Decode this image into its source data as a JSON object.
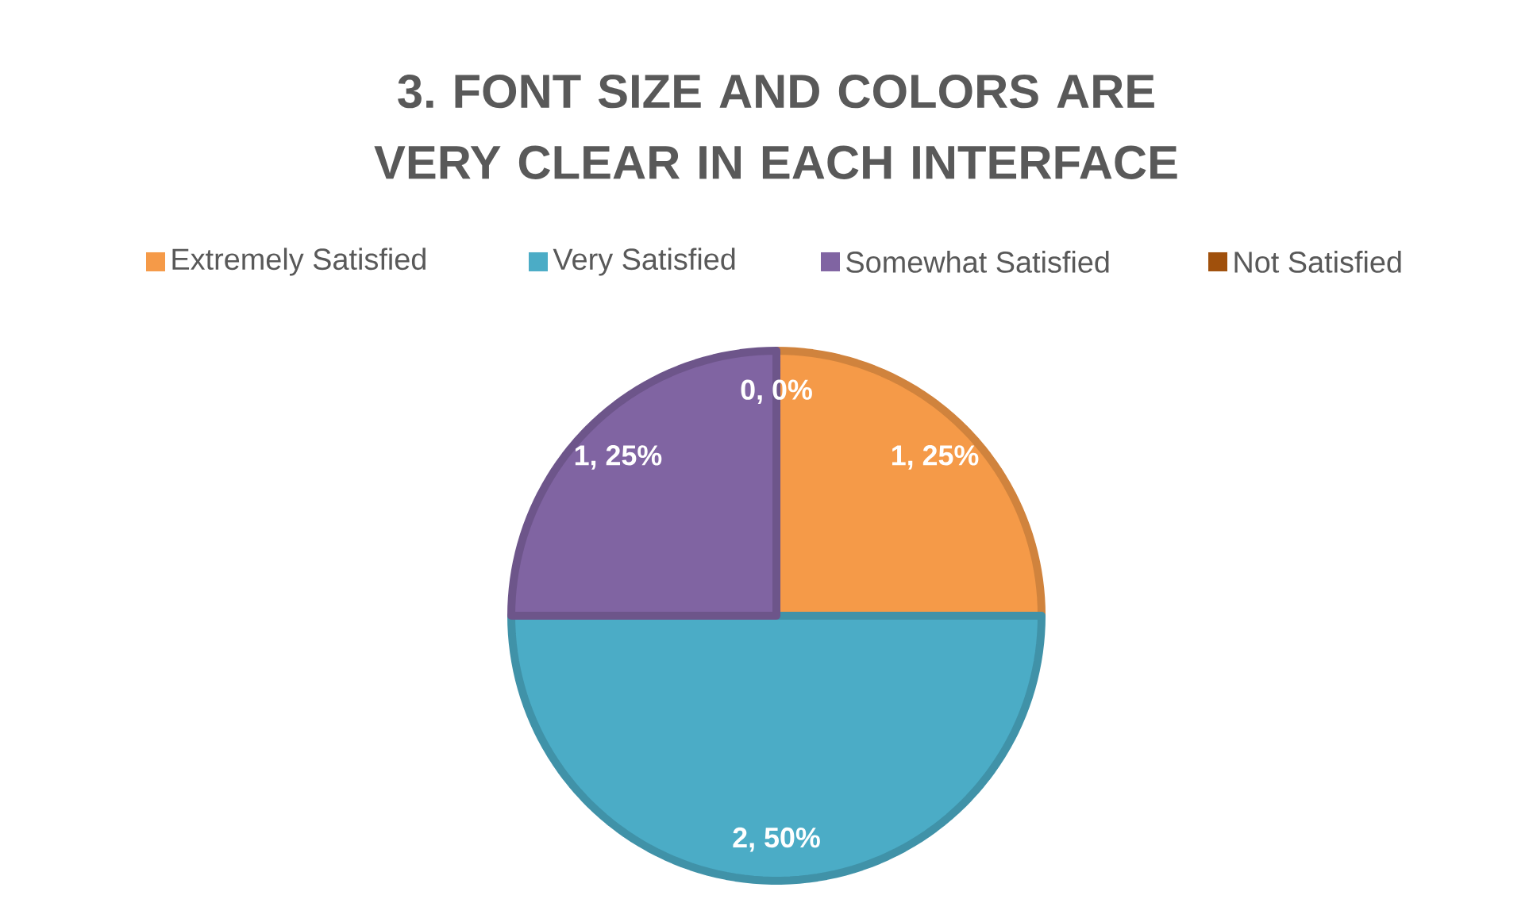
{
  "chart_data": {
    "type": "pie",
    "title": "3. FONT SIZE AND COLORS ARE VERY CLEAR IN EACH INTERFACE",
    "categories": [
      "Extremely Satisfied",
      "Very Satisfied",
      "Somewhat Satisfied",
      "Not Satisfied"
    ],
    "values": [
      1,
      2,
      1,
      0
    ],
    "colors": [
      "#f59a48",
      "#4bacc6",
      "#8064a2",
      "#a0500c"
    ],
    "value_labels": [
      "1, 25%",
      "2, 50%",
      "1, 25%",
      "0, 0%"
    ],
    "legend": "top"
  }
}
